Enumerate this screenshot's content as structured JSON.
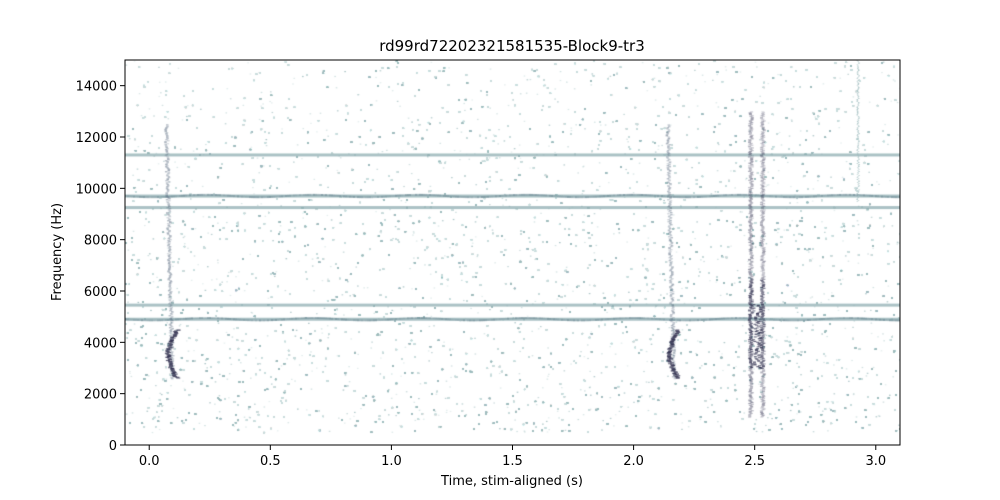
{
  "chart_data": {
    "type": "heatmap",
    "title": "rd99rd72202321581535-Block9-tr3",
    "xlabel": "Time, stim-aligned (s)",
    "ylabel": "Frequency (Hz)",
    "xlim": [
      -0.1,
      3.1
    ],
    "ylim": [
      0,
      15000
    ],
    "xticks": [
      0.0,
      0.5,
      1.0,
      1.5,
      2.0,
      2.5,
      3.0
    ],
    "xtick_labels": [
      "0.0",
      "0.5",
      "1.0",
      "1.5",
      "2.0",
      "2.5",
      "3.0"
    ],
    "yticks": [
      0,
      2000,
      4000,
      6000,
      8000,
      10000,
      12000,
      14000
    ],
    "ytick_labels": [
      "0",
      "2000",
      "4000",
      "6000",
      "8000",
      "10000",
      "12000",
      "14000"
    ],
    "grid": false,
    "colormap": "bone_r",
    "colors": {
      "background": "#ffffff",
      "noise_light": "#c9dcdc",
      "noise_mid": "#9fbcbe",
      "band": "#8faeb2",
      "dark": "#2b2a4a"
    },
    "noise_floor_hz": 500,
    "horizontal_bands": [
      {
        "freq_hz": 11300,
        "x_range": [
          -0.1,
          3.1
        ]
      },
      {
        "freq_hz": 9700,
        "x_range": [
          -0.1,
          3.1
        ]
      },
      {
        "freq_hz": 9250,
        "x_range": [
          -0.1,
          3.1
        ]
      },
      {
        "freq_hz": 5450,
        "x_range": [
          -0.1,
          3.1
        ]
      },
      {
        "freq_hz": 4900,
        "x_range": [
          -0.1,
          3.1
        ]
      }
    ],
    "events": [
      {
        "time_s": 0.06,
        "freq_range_hz": [
          2600,
          12500
        ],
        "intensity": "medium",
        "shape": "chirp"
      },
      {
        "time_s": 2.13,
        "freq_range_hz": [
          2600,
          12500
        ],
        "intensity": "medium",
        "shape": "chirp"
      },
      {
        "time_s": 2.48,
        "freq_range_hz": [
          1100,
          13000
        ],
        "intensity": "high",
        "shape": "broadband"
      },
      {
        "time_s": 2.92,
        "freq_range_hz": [
          9500,
          15000
        ],
        "intensity": "low",
        "shape": "line"
      }
    ]
  }
}
